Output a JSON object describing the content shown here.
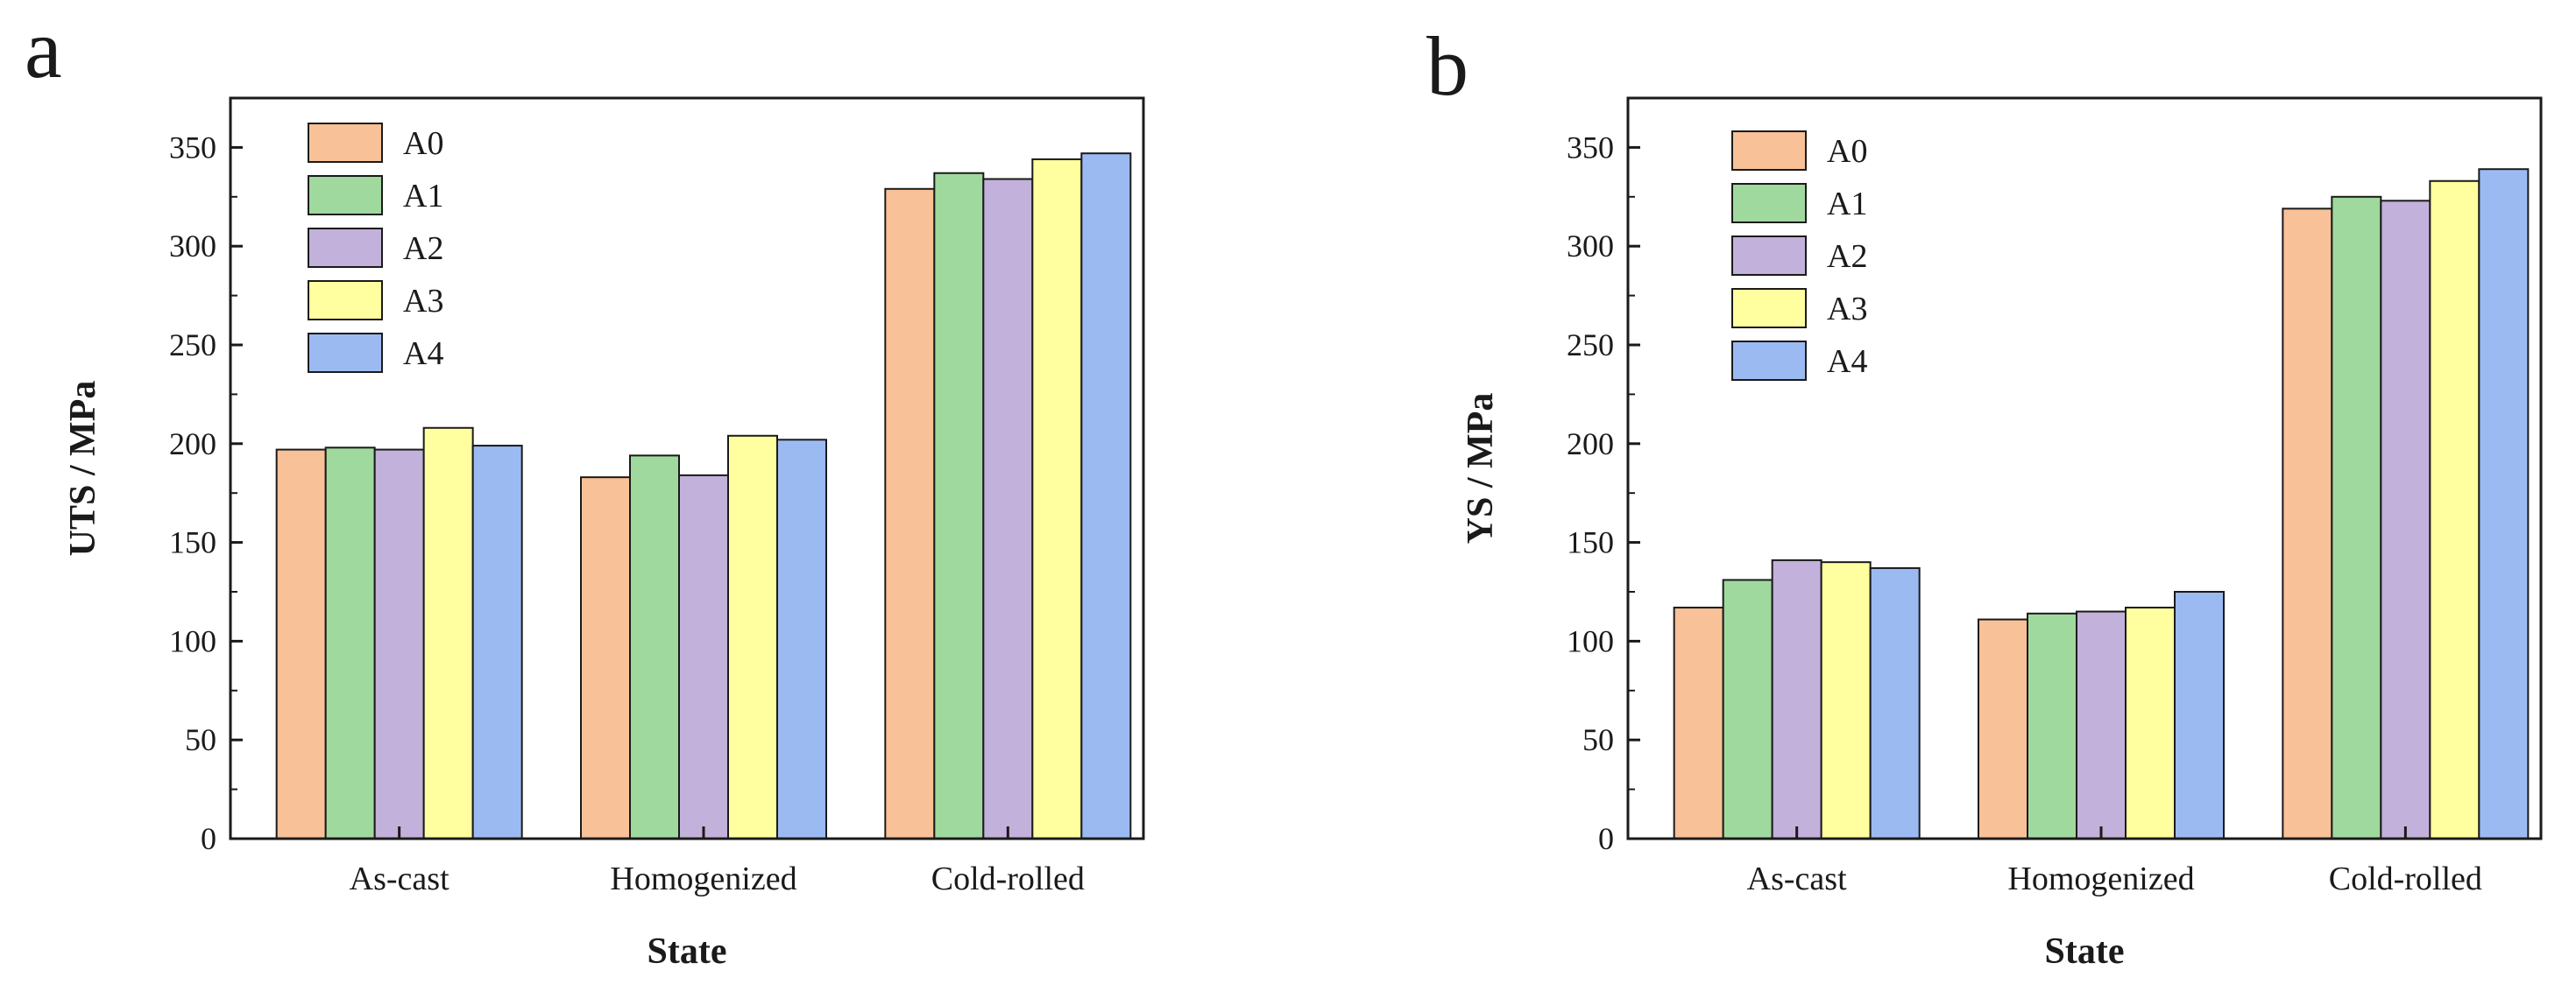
{
  "colors": {
    "A0": "#f9c197",
    "A1": "#9fd99e",
    "A2": "#c2b1da",
    "A3": "#ffff9f",
    "A4": "#9cbaf2",
    "axis": "#1a1a1a"
  },
  "chart_data": [
    {
      "panel": "a",
      "type": "bar",
      "title": "",
      "xlabel": "State",
      "ylabel": "UTS / MPa",
      "ylim": [
        0,
        375
      ],
      "yticks": [
        0,
        50,
        100,
        150,
        200,
        250,
        300,
        350
      ],
      "grid": false,
      "legend_position": "top-left",
      "categories": [
        "As-cast",
        "Homogenized",
        "Cold-rolled"
      ],
      "series": [
        {
          "name": "A0",
          "values": [
            197,
            183,
            329
          ]
        },
        {
          "name": "A1",
          "values": [
            198,
            194,
            337
          ]
        },
        {
          "name": "A2",
          "values": [
            197,
            184,
            334
          ]
        },
        {
          "name": "A3",
          "values": [
            208,
            204,
            344
          ]
        },
        {
          "name": "A4",
          "values": [
            199,
            202,
            347
          ]
        }
      ]
    },
    {
      "panel": "b",
      "type": "bar",
      "title": "",
      "xlabel": "State",
      "ylabel": "YS / MPa",
      "ylim": [
        0,
        375
      ],
      "yticks": [
        0,
        50,
        100,
        150,
        200,
        250,
        300,
        350
      ],
      "grid": false,
      "legend_position": "top-left",
      "categories": [
        "As-cast",
        "Homogenized",
        "Cold-rolled"
      ],
      "series": [
        {
          "name": "A0",
          "values": [
            117,
            111,
            319
          ]
        },
        {
          "name": "A1",
          "values": [
            131,
            114,
            325
          ]
        },
        {
          "name": "A2",
          "values": [
            141,
            115,
            323
          ]
        },
        {
          "name": "A3",
          "values": [
            140,
            117,
            333
          ]
        },
        {
          "name": "A4",
          "values": [
            137,
            125,
            339
          ]
        }
      ]
    }
  ]
}
